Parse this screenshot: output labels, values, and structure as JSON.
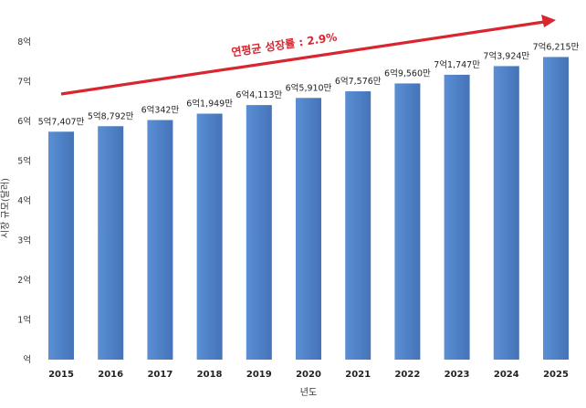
{
  "chart_data": {
    "type": "bar",
    "categories": [
      "2015",
      "2016",
      "2017",
      "2018",
      "2019",
      "2020",
      "2021",
      "2022",
      "2023",
      "2024",
      "2025"
    ],
    "values": [
      57407,
      58792,
      60342,
      61949,
      64113,
      65910,
      67576,
      69560,
      71747,
      73924,
      76215
    ],
    "data_labels": [
      "5억7,407만",
      "5억8,792만",
      "6억342만",
      "6억1,949만",
      "6억4,113만",
      "6억5,910만",
      "6억7,576만",
      "6억9,560만",
      "7억1,747만",
      "7억3,924만",
      "7억6,215만"
    ],
    "yticks": [
      0,
      10000,
      20000,
      30000,
      40000,
      50000,
      60000,
      70000,
      80000
    ],
    "ytick_labels": [
      "억",
      "1억",
      "2억",
      "3억",
      "4억",
      "5억",
      "6억",
      "7억",
      "8억"
    ],
    "ylim": [
      0,
      80000
    ],
    "xlabel": "년도",
    "ylabel": "시장 규모(달러)",
    "annotation": "연평균 성장률 : 2.9%",
    "bar_color": "#4f81c7",
    "arrow_color": "#d9252f",
    "grid": false,
    "legend": "none"
  }
}
